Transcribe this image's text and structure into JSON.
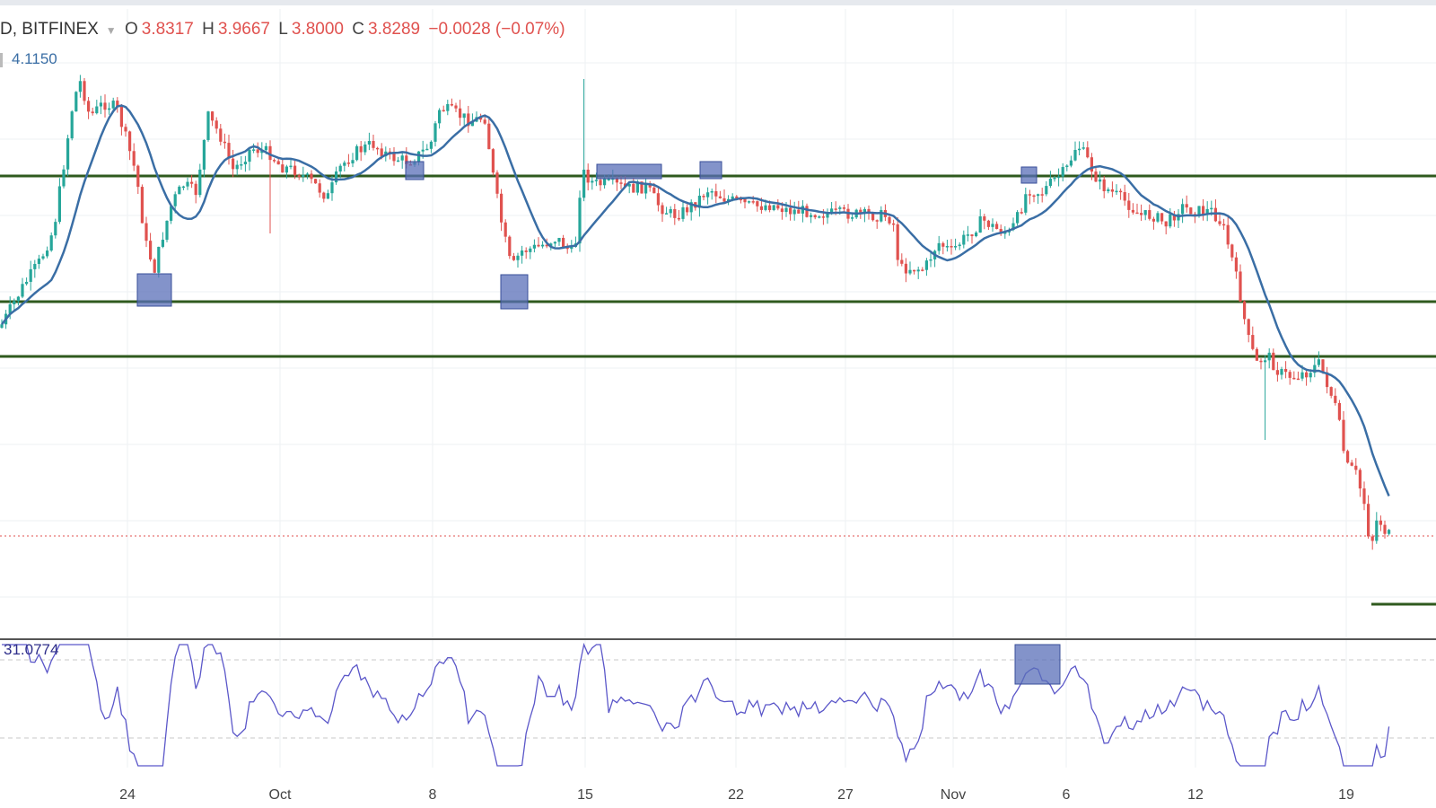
{
  "header": {
    "symbol": "D, BITFINEX",
    "open_label": "O",
    "open": "3.8317",
    "high_label": "H",
    "high": "3.9667",
    "low_label": "L",
    "low": "3.8000",
    "close_label": "C",
    "close": "3.8289",
    "change": "−0.0028 (−0.07%)",
    "ma_value": "4.1150"
  },
  "rsi": {
    "value": "31.0774"
  },
  "colors": {
    "up": "#26a69a",
    "down": "#e0524f",
    "ma": "#3a6ea5",
    "rsi": "#5b57c9",
    "support": "#2f5a1e",
    "highlight": "#5a6fb8"
  },
  "chart_data": [
    {
      "type": "candlestick",
      "x_ticks": [
        "24",
        "Oct",
        "8",
        "15",
        "22",
        "27",
        "Nov",
        "6",
        "12",
        "19"
      ],
      "horizontal_levels_note": "support/resistance lines drawn across price pane",
      "series": [
        {
          "kind": "ohlc"
        },
        {
          "kind": "moving-average"
        }
      ]
    },
    {
      "type": "line",
      "series": [
        {
          "kind": "rsi"
        }
      ]
    }
  ]
}
